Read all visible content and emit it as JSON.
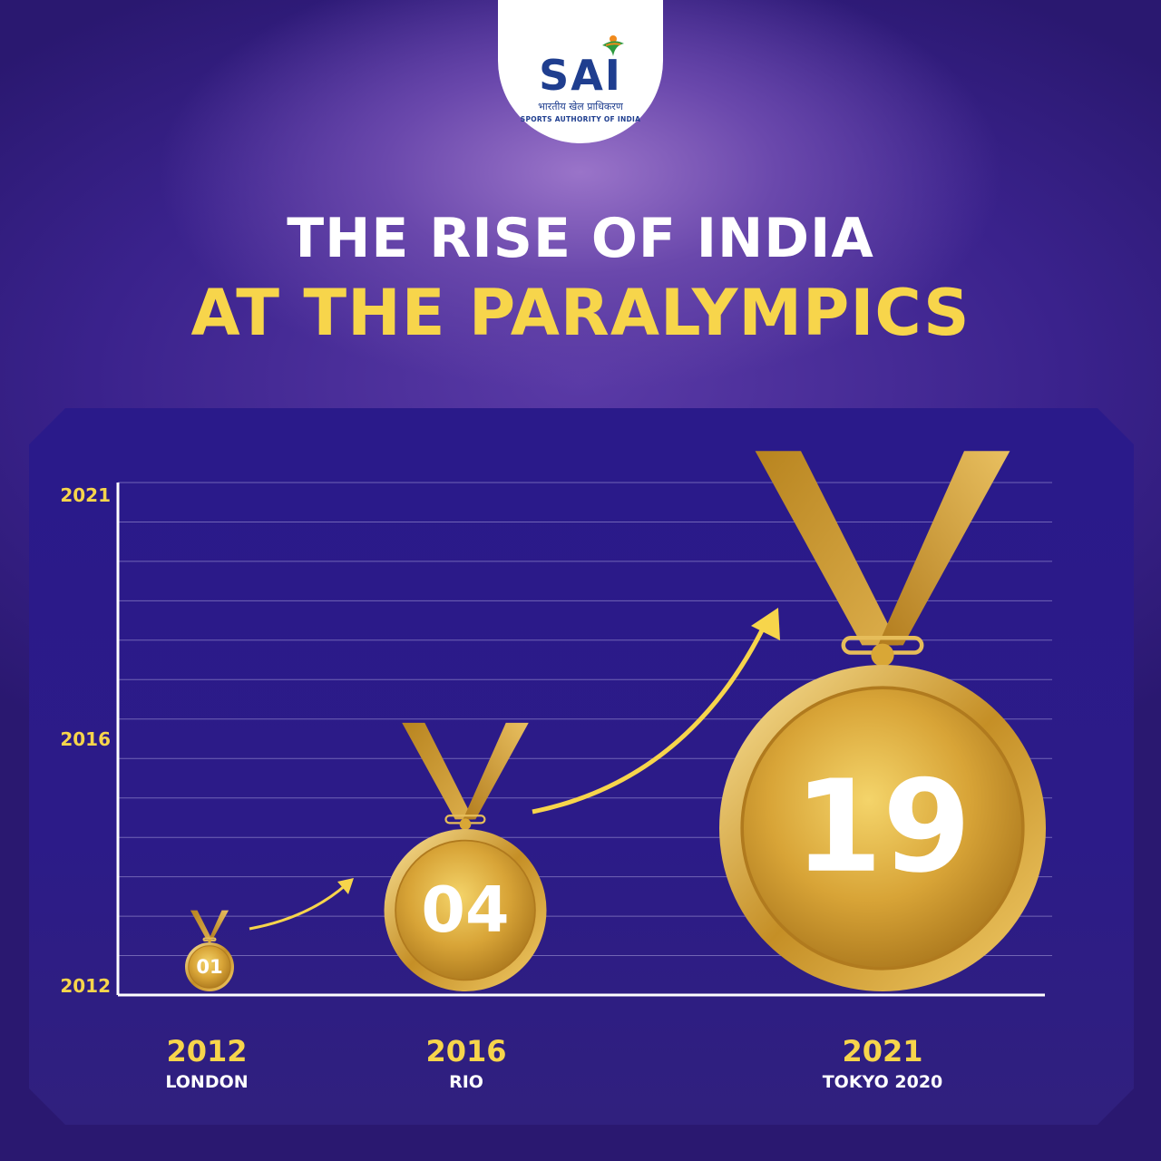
{
  "logo": {
    "mark": "SAI",
    "hindi": "भारतीय खेल प्राधिकरण",
    "name": "SPORTS AUTHORITY OF INDIA"
  },
  "title": {
    "line1": "THE RISE OF INDIA",
    "line2": "AT THE PARALYMPICS"
  },
  "colors": {
    "background": "#3a228c",
    "accent": "#f7d54b",
    "medal_gold": "#d9a736",
    "ribbon": "#c9952c"
  },
  "chart_data": {
    "type": "bar",
    "title": "THE RISE OF INDIA AT THE PARALYMPICS",
    "y_ticks": [
      "2021",
      "2016",
      "2012"
    ],
    "categories": [
      "2012",
      "2016",
      "2021"
    ],
    "sublabels": [
      "LONDON",
      "RIO",
      "TOKYO 2020"
    ],
    "value_labels": [
      "01",
      "04",
      "19"
    ],
    "values": [
      1,
      4,
      19
    ],
    "grid": true,
    "marker": "medal"
  }
}
